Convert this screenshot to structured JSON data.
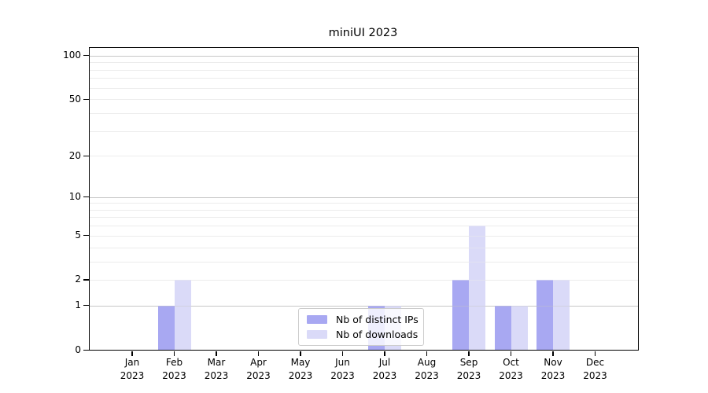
{
  "title": "miniUI 2023",
  "chart_data": {
    "type": "bar",
    "title": "miniUI 2023",
    "categories": [
      "Jan 2023",
      "Feb 2023",
      "Mar 2023",
      "Apr 2023",
      "May 2023",
      "Jun 2023",
      "Jul 2023",
      "Aug 2023",
      "Sep 2023",
      "Oct 2023",
      "Nov 2023",
      "Dec 2023"
    ],
    "series": [
      {
        "name": "Nb of distinct IPs",
        "color": "#a8a8f2",
        "values": [
          0,
          1,
          0,
          0,
          0,
          0,
          1,
          0,
          2,
          1,
          2,
          0
        ]
      },
      {
        "name": "Nb of downloads",
        "color": "#dadaf8",
        "values": [
          0,
          2,
          0,
          0,
          0,
          0,
          1,
          0,
          6,
          1,
          2,
          0
        ]
      }
    ],
    "xlabel": "",
    "ylabel": "",
    "yscale": "log1p",
    "ylim": [
      0,
      113
    ],
    "yticks": [
      0,
      1,
      2,
      5,
      10,
      20,
      50,
      100
    ],
    "grid": {
      "minor_values": [
        2,
        3,
        4,
        5,
        6,
        7,
        8,
        9,
        20,
        30,
        40,
        50,
        60,
        70,
        80,
        90
      ],
      "major_values": [
        1,
        10,
        100
      ],
      "minor_color": "#ececec",
      "major_color": "#c6c6c6"
    },
    "legend": {
      "position": "lower-center"
    },
    "colors": {
      "axis": "#000000",
      "background": "#ffffff"
    }
  }
}
